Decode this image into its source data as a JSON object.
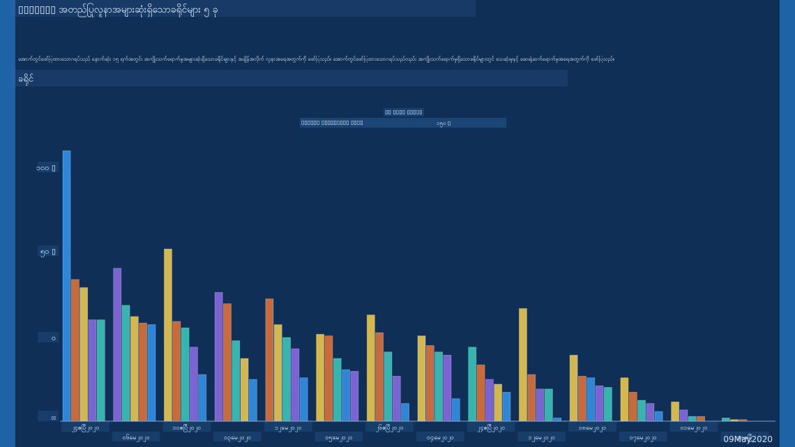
{
  "header": {
    "title": "▯▯▯▯▯▯▯ အတည်ပြုလူနာအများဆုံးရှိသောခရိုင်များ ၅ ခု",
    "description": "အောက်တွင်ဖော်ပြထားသောဂရပ်သည် နောက်ဆုံး ၁၅ ရက်အတွင်း အကျိုးသက်ရောက်မှုအများဆုံးရှိသောခရိုင်များနှင့် အချိန်အလိုက် လူနာအရေအတွက်ကို ဖော်ပြသည်။ အောက်တွင်ဖော်ပြထားသောဂရပ်သည်လည်း အကျိုးသက်ရောက်မှုရှိသောခရိုင်များတွင် သေဆုံးမှုနှင့် ဆေးရုံဆက်ရောက်မှုအရေအတွက်ကို ဖော်ပြသည်။",
    "section": "ခရိုင်"
  },
  "legend": {
    "title": "▯▯ ▯▯▯▯ ▯▯▯▯▯",
    "left_label": "▯▯▯▯▯▯ ▯▯▯▯▯▯▯▯▯ ▯▯▯▯",
    "right_label": "၁၅ဝ ▯"
  },
  "footer": {
    "date": "09May2020"
  },
  "chart_data": {
    "type": "bar",
    "title": "",
    "xlabel": "",
    "ylabel": "",
    "y_tick_labels": [
      "၁၀၀ ▯",
      "၅ဝ ▯",
      "ဝ",
      "▯▯"
    ],
    "categories": [
      "၂၄ဧပြီ၂၀၂၀",
      "၀၆မေ၂၀၂၀",
      "၁၀ဧပြီ၂၀၂၀",
      "၀၃မေ၂၀၂၀",
      "၁၂မေ၂၀၂၀",
      "၀၅မေ၂၀၂၀",
      "၂၆ဧပြီ၂၀၂၀",
      "၀၄မေ၂၀၂၀",
      "၂၄ဧပြီ၂၀၂၀",
      "၁၂မေ၂၀၂၀",
      "၀၈မေ၂၀၂၀",
      "၀၇မေ၂၀၂၀",
      "၀၁မေ၂၀၂၀",
      "၃၀ဧပြီ"
    ],
    "colors": [
      "#2f86d6",
      "#7b63d1",
      "#d4b84e",
      "#c96a3a",
      "#35b5ad"
    ],
    "bars": [
      [
        {
          "v": 168,
          "c": 0
        },
        {
          "v": 88,
          "c": 3
        },
        {
          "v": 83,
          "c": 2
        },
        {
          "v": 63,
          "c": 1
        },
        {
          "v": 63,
          "c": 4
        }
      ],
      [
        {
          "v": 95,
          "c": 1
        },
        {
          "v": 72,
          "c": 4
        },
        {
          "v": 65,
          "c": 2
        },
        {
          "v": 61,
          "c": 3
        },
        {
          "v": 60,
          "c": 0
        }
      ],
      [
        {
          "v": 107,
          "c": 2
        },
        {
          "v": 62,
          "c": 3
        },
        {
          "v": 58,
          "c": 4
        },
        {
          "v": 46,
          "c": 1
        },
        {
          "v": 29,
          "c": 0
        }
      ],
      [
        {
          "v": 80,
          "c": 1
        },
        {
          "v": 73,
          "c": 3
        },
        {
          "v": 50,
          "c": 4
        },
        {
          "v": 39,
          "c": 2
        },
        {
          "v": 26,
          "c": 0
        }
      ],
      [
        {
          "v": 76,
          "c": 3
        },
        {
          "v": 60,
          "c": 2
        },
        {
          "v": 52,
          "c": 4
        },
        {
          "v": 45,
          "c": 1
        },
        {
          "v": 27,
          "c": 0
        }
      ],
      [
        {
          "v": 54,
          "c": 2
        },
        {
          "v": 53,
          "c": 3
        },
        {
          "v": 39,
          "c": 4
        },
        {
          "v": 32,
          "c": 0
        },
        {
          "v": 31,
          "c": 1
        }
      ],
      [
        {
          "v": 66,
          "c": 2
        },
        {
          "v": 55,
          "c": 3
        },
        {
          "v": 43,
          "c": 4
        },
        {
          "v": 28,
          "c": 1
        },
        {
          "v": 11,
          "c": 0
        }
      ],
      [
        {
          "v": 53,
          "c": 2
        },
        {
          "v": 47,
          "c": 3
        },
        {
          "v": 43,
          "c": 4
        },
        {
          "v": 41,
          "c": 1
        },
        {
          "v": 14,
          "c": 0
        }
      ],
      [
        {
          "v": 46,
          "c": 4
        },
        {
          "v": 35,
          "c": 3
        },
        {
          "v": 26,
          "c": 1
        },
        {
          "v": 23,
          "c": 2
        },
        {
          "v": 18,
          "c": 0
        }
      ],
      [
        {
          "v": 70,
          "c": 2
        },
        {
          "v": 29,
          "c": 3
        },
        {
          "v": 20,
          "c": 1
        },
        {
          "v": 20,
          "c": 4
        },
        {
          "v": 2,
          "c": 0
        }
      ],
      [
        {
          "v": 41,
          "c": 2
        },
        {
          "v": 28,
          "c": 3
        },
        {
          "v": 27,
          "c": 0
        },
        {
          "v": 22,
          "c": 1
        },
        {
          "v": 21,
          "c": 4
        }
      ],
      [
        {
          "v": 27,
          "c": 2
        },
        {
          "v": 18,
          "c": 3
        },
        {
          "v": 13,
          "c": 4
        },
        {
          "v": 11,
          "c": 1
        },
        {
          "v": 6,
          "c": 0
        }
      ],
      [
        {
          "v": 12,
          "c": 2
        },
        {
          "v": 7,
          "c": 1
        },
        {
          "v": 3,
          "c": 4
        },
        {
          "v": 3,
          "c": 3
        }
      ],
      [
        {
          "v": 2,
          "c": 4
        },
        {
          "v": 1,
          "c": 2
        },
        {
          "v": 1,
          "c": 3
        }
      ]
    ],
    "ylim": [
      0,
      175
    ],
    "grid": false,
    "legend": "top"
  }
}
